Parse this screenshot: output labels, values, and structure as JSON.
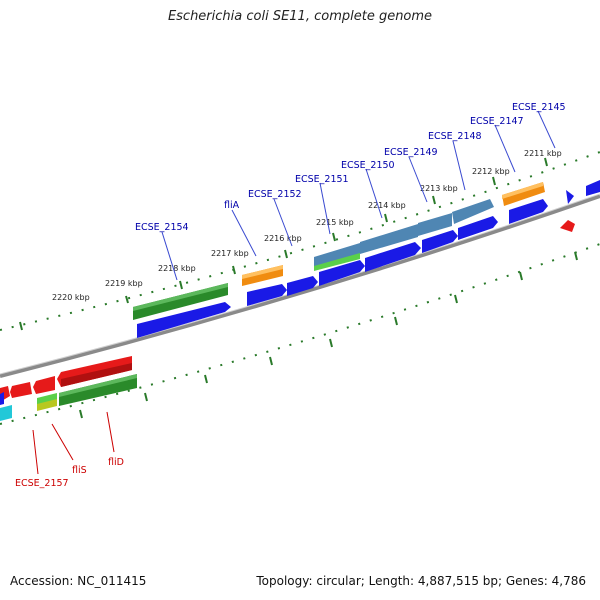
{
  "title": "Escherichia coli SE11, complete genome",
  "footer": {
    "accession": "Accession: NC_011415",
    "summary": "Topology: circular; Length: 4,887,515 bp; Genes: 4,786"
  },
  "colors": {
    "backbone": "#8a8a8a",
    "tick": "#2a7a2a",
    "label_top": "#0000aa",
    "label_bottom": "#cc0000",
    "blue": "#1a1ae6",
    "steel": "#4f86b3",
    "orange": "#f08c10",
    "green": "#2a8a2a",
    "light_green": "#5ad04a",
    "red": "#e61a1a",
    "cyan": "#22c8d8",
    "yellow_green": "#b8c820"
  },
  "ruler_labels": [
    {
      "text": "2211 kbp"
    },
    {
      "text": "2212 kbp"
    },
    {
      "text": "2213 kbp"
    },
    {
      "text": "2214 kbp"
    },
    {
      "text": "2215 kbp"
    },
    {
      "text": "2216 kbp"
    },
    {
      "text": "2217 kbp"
    },
    {
      "text": "2218 kbp"
    },
    {
      "text": "2219 kbp"
    },
    {
      "text": "2220 kbp"
    }
  ],
  "gene_labels_top": [
    {
      "text": "ECSE_2145"
    },
    {
      "text": "ECSE_2147"
    },
    {
      "text": "ECSE_2148"
    },
    {
      "text": "ECSE_2149"
    },
    {
      "text": "ECSE_2150"
    },
    {
      "text": "ECSE_2151"
    },
    {
      "text": "ECSE_2152"
    },
    {
      "text": "fliA"
    },
    {
      "text": "ECSE_2154"
    }
  ],
  "gene_labels_bottom": [
    {
      "text": "ECSE_2157"
    },
    {
      "text": "fliS"
    },
    {
      "text": "fliD"
    }
  ]
}
